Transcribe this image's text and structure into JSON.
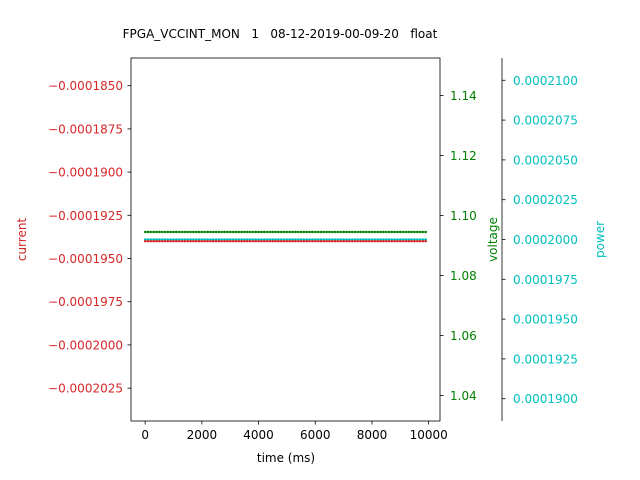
{
  "chart_data": {
    "type": "line",
    "title": "FPGA_VCCINT_MON   1   08-12-2019-00-09-20   float",
    "xlabel": "time (ms)",
    "xlim": [
      -500,
      10400
    ],
    "xticks": [
      0,
      2000,
      4000,
      6000,
      8000,
      10000
    ],
    "x_start": 0,
    "x_end": 9900,
    "x_step": 100,
    "grid": false,
    "legend": "none",
    "axes": [
      {
        "key": "current",
        "label": "current",
        "side": "left",
        "color": "#d62728",
        "ylim": [
          -0.0002044,
          -0.0001834
        ],
        "ticks": [
          -0.000185,
          -0.0001875,
          -0.00019,
          -0.0001925,
          -0.000195,
          -0.0001975,
          -0.0002,
          -0.0002025
        ],
        "tick_labels": [
          "−0.0001850",
          "−0.0001875",
          "−0.0001900",
          "−0.0001925",
          "−0.0001950",
          "−0.0001975",
          "−0.0002000",
          "−0.0002025"
        ],
        "value": -0.000194
      },
      {
        "key": "voltage",
        "label": "voltage",
        "side": "right",
        "color": "#008000",
        "ylim": [
          1.0315,
          1.1525
        ],
        "ticks": [
          1.04,
          1.06,
          1.08,
          1.1,
          1.12,
          1.14
        ],
        "tick_labels": [
          "1.04",
          "1.06",
          "1.08",
          "1.10",
          "1.12",
          "1.14"
        ],
        "value": 1.0945
      },
      {
        "key": "power",
        "label": "power",
        "side": "right-offset",
        "color": "#00bfbf",
        "ylim": [
          0.0001886,
          0.0002114
        ],
        "ticks": [
          0.00019,
          0.0001925,
          0.000195,
          0.0001975,
          0.0002,
          0.0002025,
          0.000205,
          0.0002075,
          0.00021
        ],
        "tick_labels": [
          "0.0001900",
          "0.0001925",
          "0.0001950",
          "0.0001975",
          "0.0002000",
          "0.0002025",
          "0.0002050",
          "0.0002075",
          "0.0002100"
        ],
        "value": 0.0002
      }
    ]
  }
}
